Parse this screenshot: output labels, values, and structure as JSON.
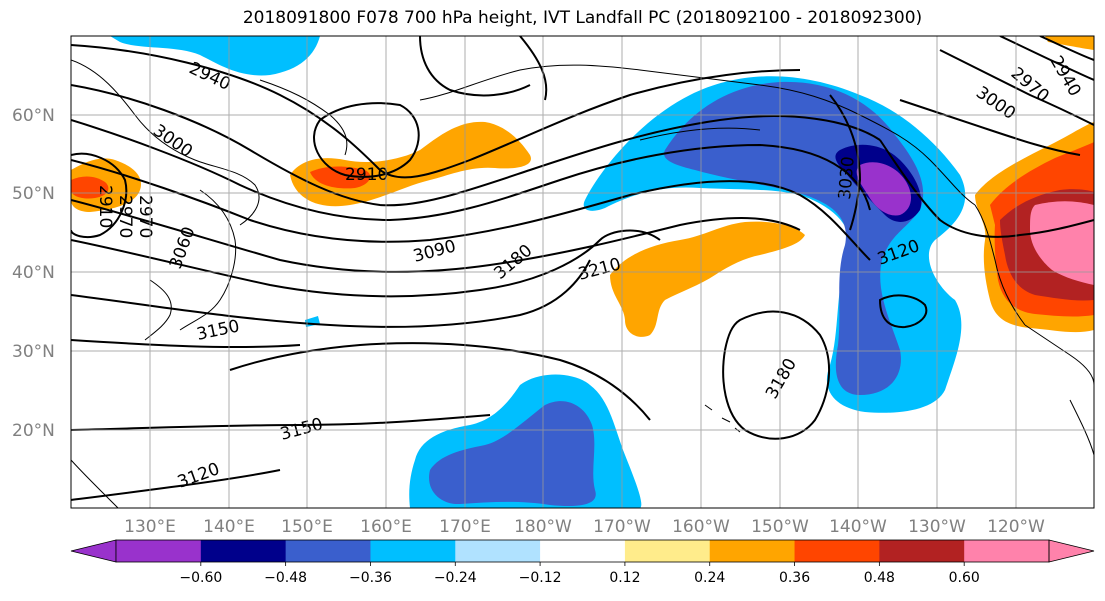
{
  "title": "2018091800 F078 700 hPa height, IVT Landfall PC (2018092100 - 2018092300)",
  "lat_labels": [
    "60°N",
    "50°N",
    "40°N",
    "30°N",
    "20°N"
  ],
  "lon_labels": [
    "130°E",
    "140°E",
    "150°E",
    "160°E",
    "170°E",
    "180°W",
    "170°W",
    "160°W",
    "150°W",
    "140°W",
    "130°W",
    "120°W"
  ],
  "contour_labels": [
    "2940",
    "3000",
    "2910",
    "2970",
    "2970",
    "2910",
    "3060",
    "3090",
    "3180",
    "3210",
    "3150",
    "3150",
    "3120",
    "3180",
    "3120",
    "3000",
    "2970",
    "2940",
    "3030"
  ],
  "colorbar": {
    "ticks": [
      "−0.60",
      "−0.48",
      "−0.36",
      "−0.24",
      "−0.12",
      "0.12",
      "0.24",
      "0.36",
      "0.48",
      "0.60"
    ],
    "colors": [
      "#9932CC",
      "#00008B",
      "#3A5FCD",
      "#00BFFF",
      "#B0E2FF",
      "#FFFFFF",
      "#FFEC8B",
      "#FFA500",
      "#FF4500",
      "#B22222",
      "#FF82AB",
      "#FF82AB"
    ]
  }
}
